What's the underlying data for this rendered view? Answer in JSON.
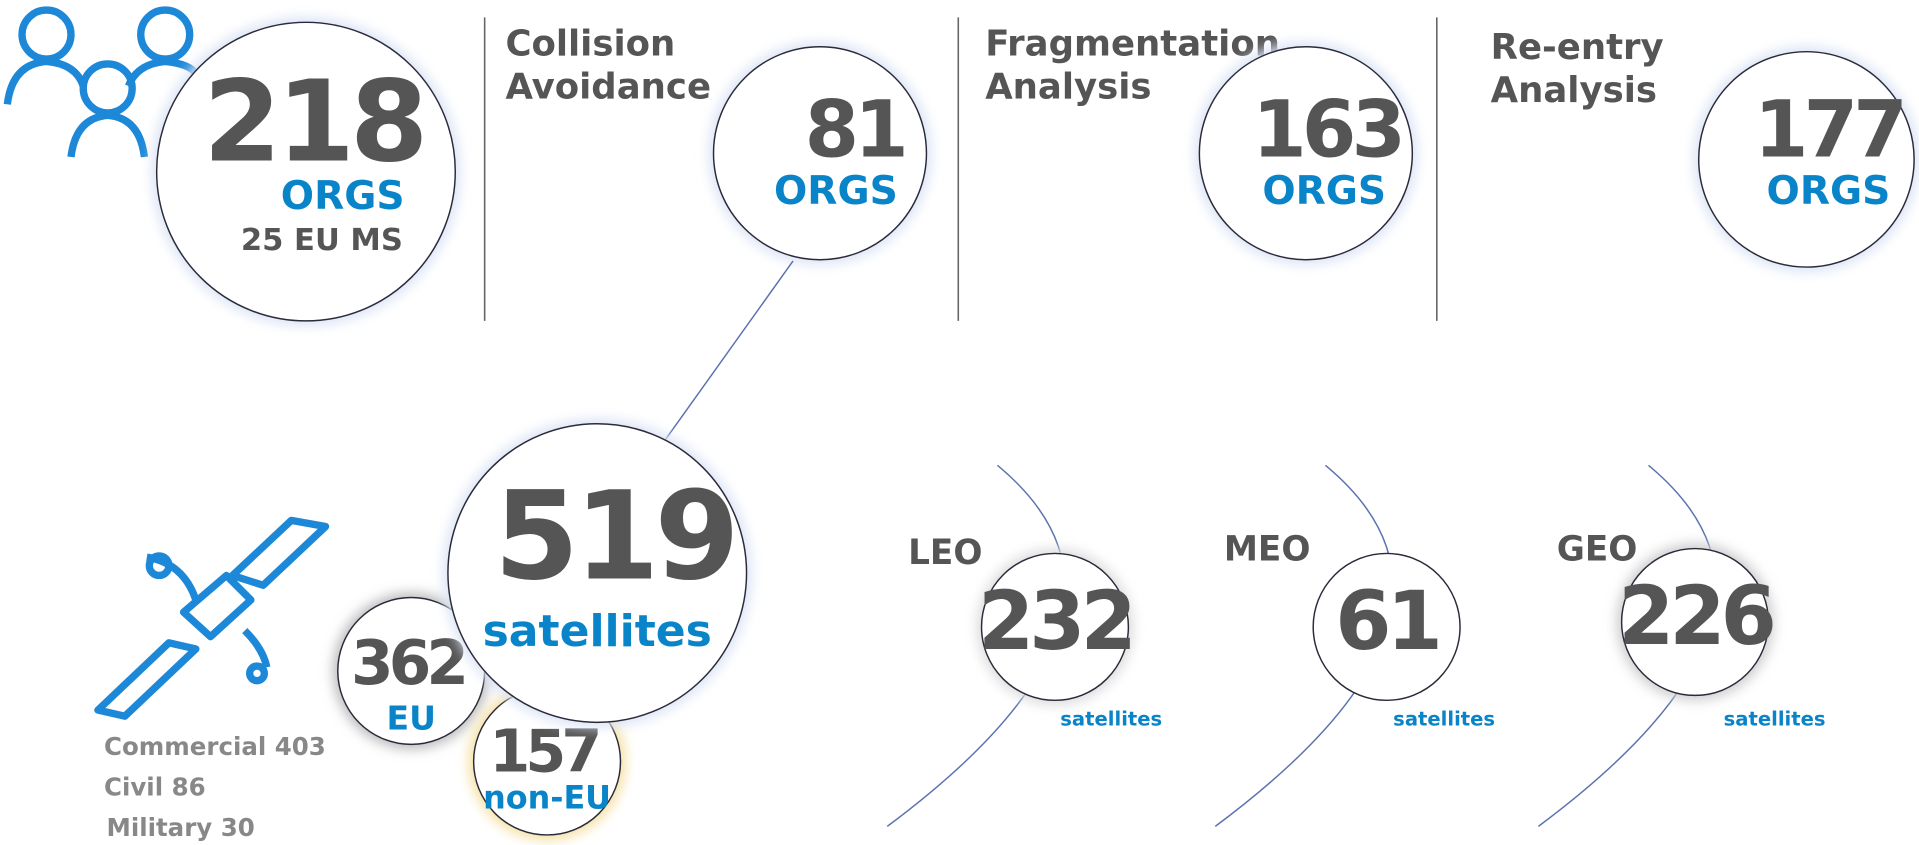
{
  "organizations": {
    "total": 218,
    "unit": "ORGS",
    "note": "25 EU MS"
  },
  "services": [
    {
      "title": [
        "Collision",
        "Avoidance"
      ],
      "count": 81,
      "unit": "ORGS"
    },
    {
      "title": [
        "Fragmentation",
        "Analysis"
      ],
      "count": 163,
      "unit": "ORGS"
    },
    {
      "title": [
        "Re-entry",
        "Analysis"
      ],
      "count": 177,
      "unit": "ORGS"
    }
  ],
  "satellites": {
    "total": 519,
    "unit": "satellites",
    "eu": {
      "count": 362,
      "label": "EU"
    },
    "non_eu": {
      "count": 157,
      "label": "non-EU"
    },
    "breakdown": [
      "Commercial 403",
      "Civil 86",
      "Military 30"
    ]
  },
  "orbits": [
    {
      "name": "LEO",
      "count": 232,
      "unit": "satellites"
    },
    {
      "name": "MEO",
      "count": 61,
      "unit": "satellites"
    },
    {
      "name": "GEO",
      "count": 226,
      "unit": "satellites"
    }
  ]
}
